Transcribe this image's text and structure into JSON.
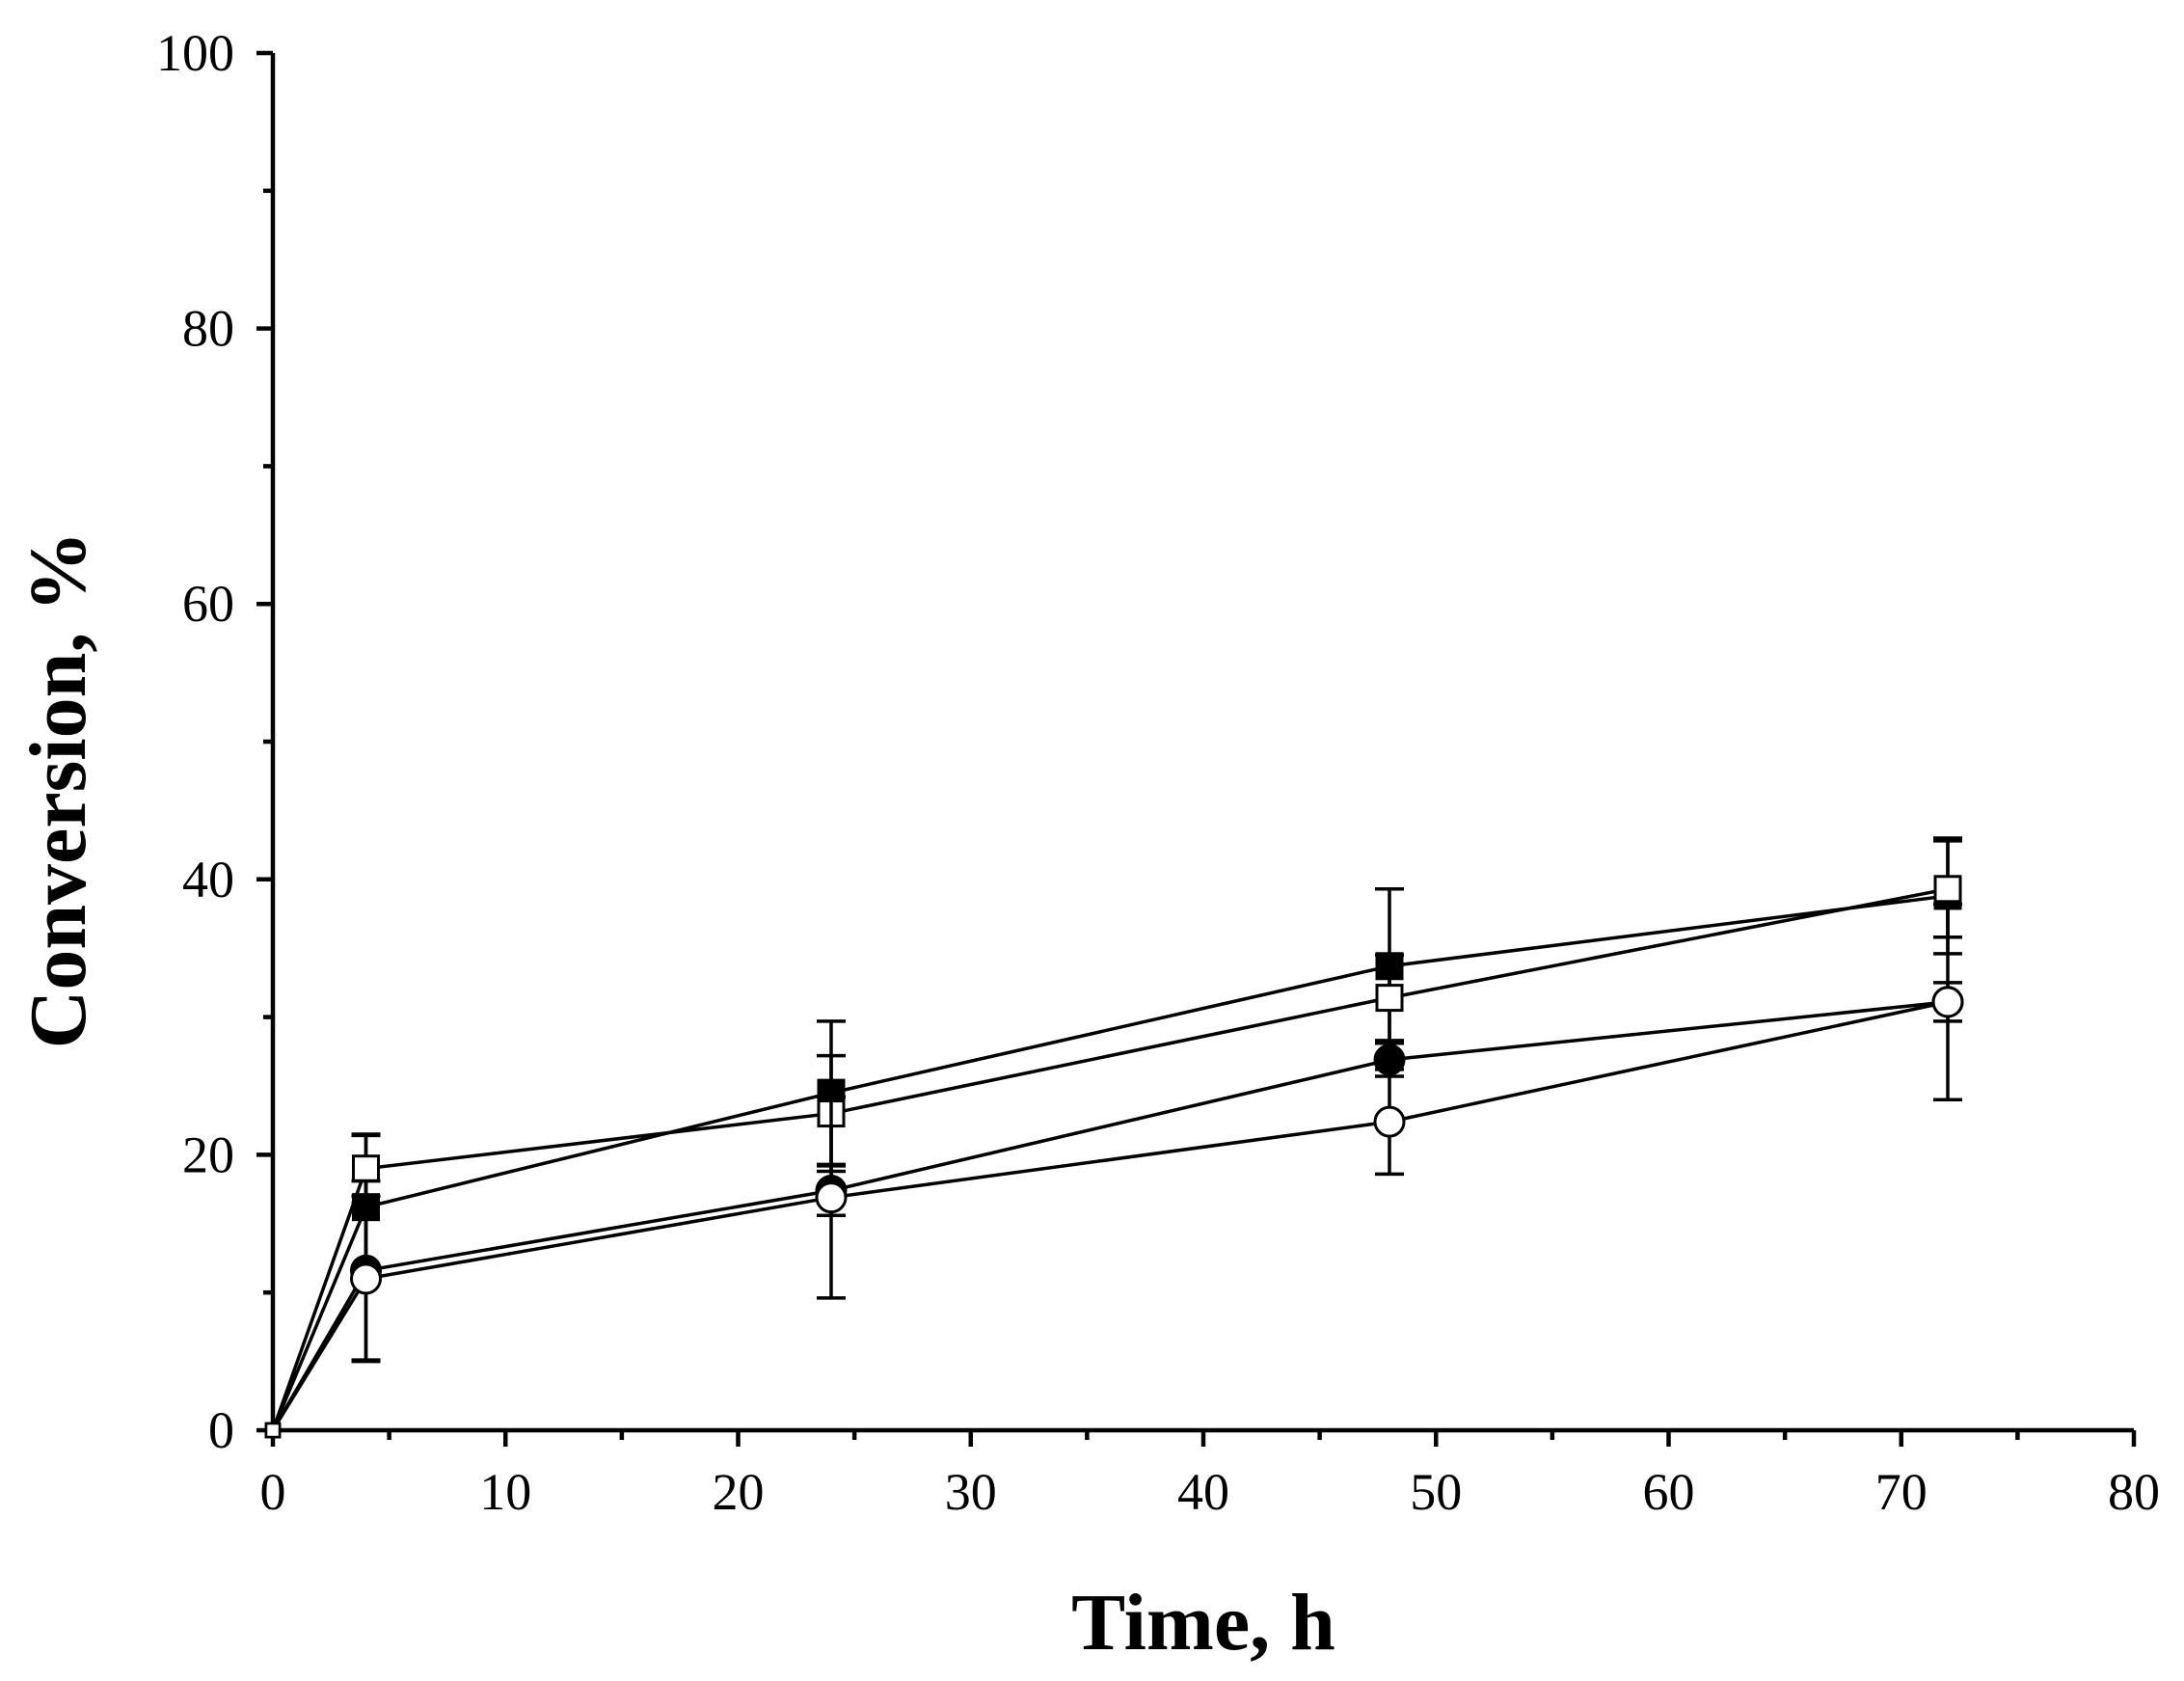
{
  "chart_data": {
    "type": "line",
    "title": "",
    "xlabel": "Time, h",
    "ylabel": "Conversion, %",
    "xlim": [
      0,
      80
    ],
    "ylim": [
      0,
      100
    ],
    "x_ticks": [
      0,
      10,
      20,
      30,
      40,
      50,
      60,
      70,
      80
    ],
    "y_ticks": [
      0,
      20,
      40,
      60,
      80,
      100
    ],
    "x_minor_step": 5,
    "y_minor_step": 10,
    "grid": false,
    "legend": "none",
    "series": [
      {
        "name": "filled-square",
        "marker": "square",
        "filled": true,
        "x": [
          0,
          4,
          24,
          48,
          72
        ],
        "y": [
          0,
          16.2,
          24.5,
          33.7,
          38.8
        ],
        "err": [
          0,
          5.2,
          5.2,
          5.6,
          4.2
        ]
      },
      {
        "name": "open-square",
        "marker": "square",
        "filled": false,
        "x": [
          0,
          4,
          24,
          48,
          72
        ],
        "y": [
          0,
          19.0,
          23.0,
          31.4,
          39.3
        ],
        "err": [
          0,
          2.5,
          4.2,
          3.1,
          3.5
        ]
      },
      {
        "name": "filled-circle",
        "marker": "circle",
        "filled": true,
        "x": [
          0,
          4,
          24,
          48,
          72
        ],
        "y": [
          0,
          11.6,
          17.4,
          26.9,
          31.1
        ],
        "err": [
          0,
          6.5,
          1.8,
          1.2,
          1.4
        ]
      },
      {
        "name": "open-circle",
        "marker": "circle",
        "filled": false,
        "x": [
          0,
          4,
          24,
          48,
          72
        ],
        "y": [
          0,
          11.0,
          16.9,
          22.4,
          31.1
        ],
        "err": [
          0,
          6.0,
          7.3,
          3.8,
          7.1
        ]
      }
    ]
  }
}
